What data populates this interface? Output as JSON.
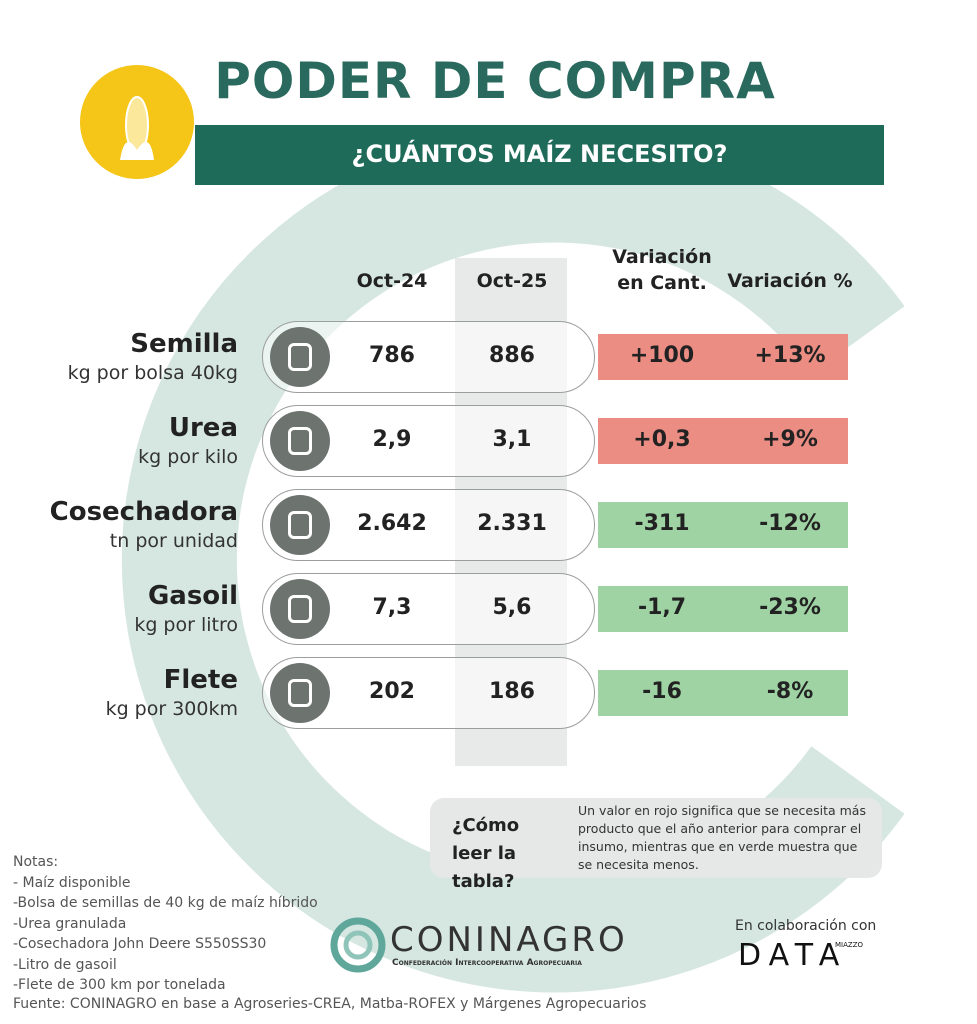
{
  "header": {
    "title": "PODER DE COMPRA",
    "subtitle": "¿CUÁNTOS MAÍZ NECESITO?"
  },
  "table": {
    "columns": [
      "Oct-24",
      "Oct-25",
      "Variación en Cant.",
      "Variación %"
    ],
    "rows": [
      {
        "name": "Semilla",
        "unit": "kg por bolsa 40kg",
        "cells": [
          "786",
          "886",
          "+100",
          "+13%"
        ],
        "color": "#ec8d84"
      },
      {
        "name": "Urea",
        "unit": "kg por kilo",
        "cells": [
          "2,9",
          "3,1",
          "+0,3",
          "+9%"
        ],
        "color": "#ec8d84"
      },
      {
        "name": "Cosechadora",
        "unit": "tn por unidad",
        "cells": [
          "2.642",
          "2.331",
          "-311",
          "-12%"
        ],
        "color": "#9fd3a4"
      },
      {
        "name": "Gasoil",
        "unit": "kg por litro",
        "cells": [
          "7,3",
          "5,6",
          "-1,7",
          "-23%"
        ],
        "color": "#9fd3a4"
      },
      {
        "name": "Flete",
        "unit": "kg por 300km",
        "cells": [
          "202",
          "186",
          "-16",
          "-8%"
        ],
        "color": "#9fd3a4"
      }
    ]
  },
  "help": {
    "title": "¿Cómo leer la tabla?",
    "text": "Un valor en rojo significa que se necesita más producto que el año anterior para comprar el insumo, mientras que en verde muestra que se necesita menos."
  },
  "notes": {
    "heading": "Notas:",
    "items": [
      "- Maíz disponible",
      "-Bolsa de semillas de 40 kg de maíz híbrido",
      "-Urea granulada",
      "-Cosechadora John Deere S550SS30",
      "-Litro de gasoil",
      "-Flete de 300 km por tonelada"
    ]
  },
  "source": "Fuente: CONINAGRO en base a Agroseries-CREA, Matba-ROFEX y Márgenes Agropecuarios",
  "footer": {
    "logo": "CONINAGRO",
    "logo_subtitle": "Confederación Intercooperativa Agropecuaria",
    "collab": "En colaboración con",
    "brand": "DATA",
    "brand_sub": "MIAZZO"
  }
}
